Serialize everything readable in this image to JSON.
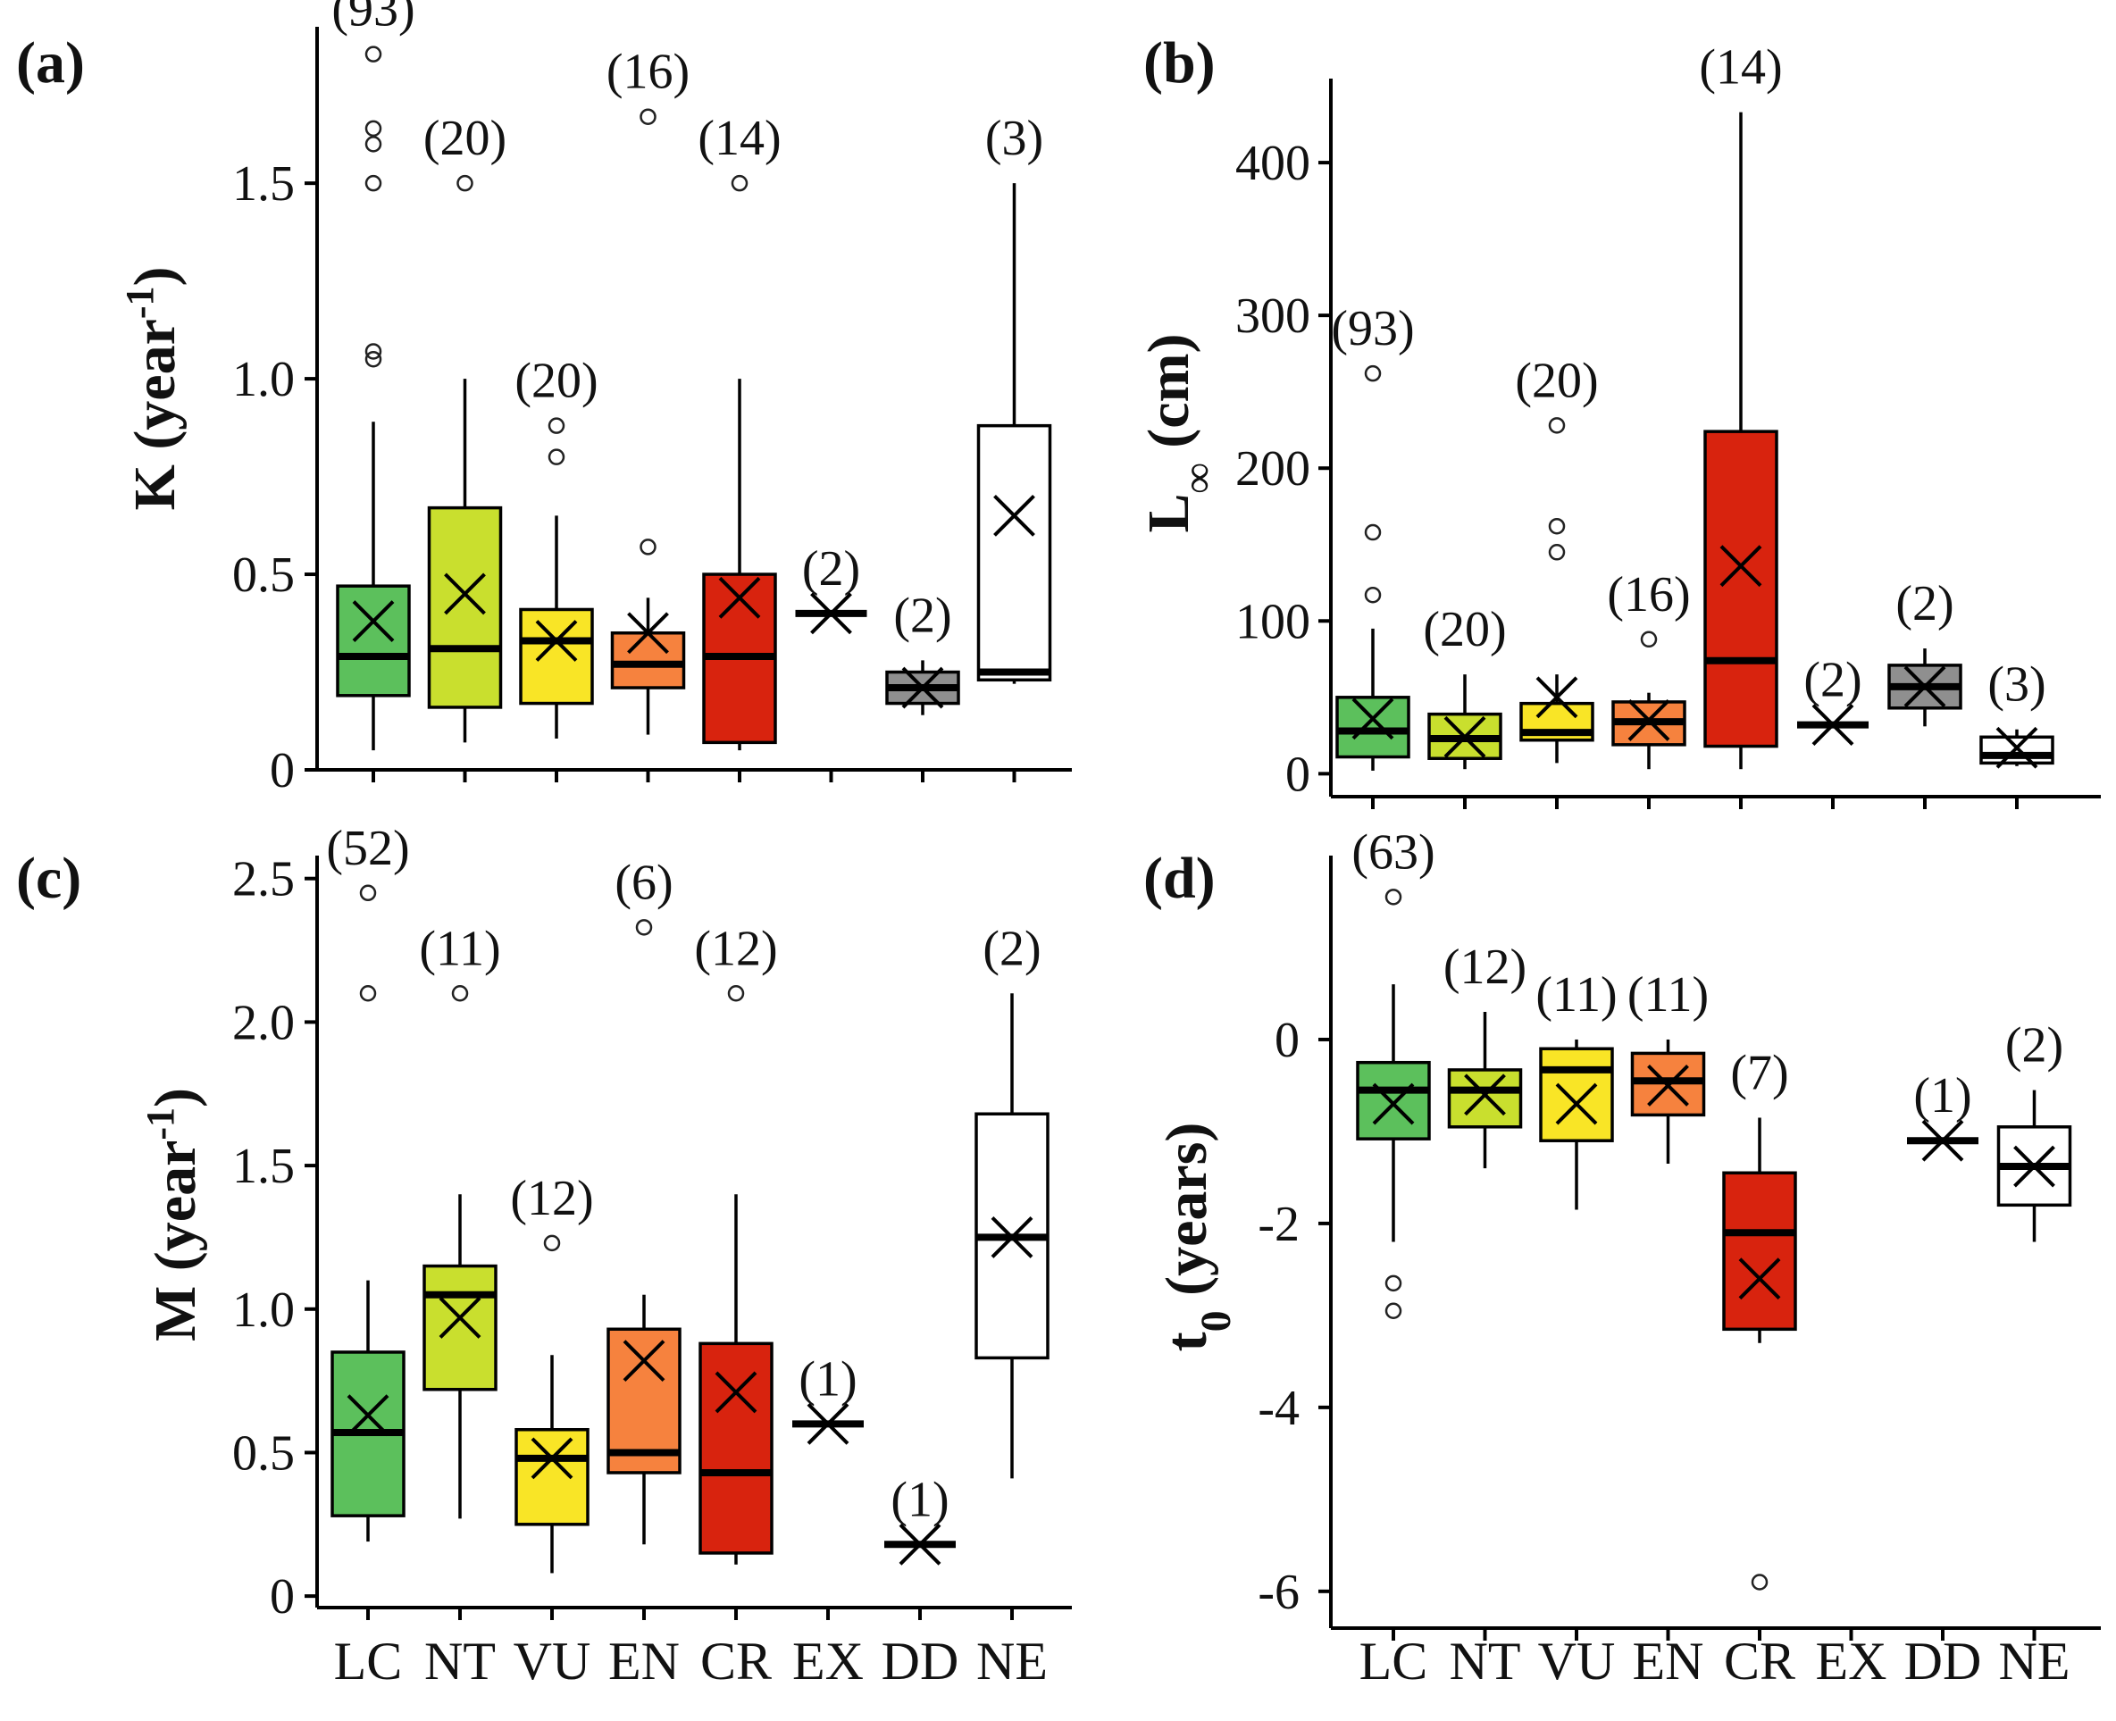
{
  "figure": {
    "categories": [
      "LC",
      "NT",
      "VU",
      "EN",
      "CR",
      "EX",
      "DD",
      "NE"
    ],
    "colors": {
      "LC": "#5cc05c",
      "NT": "#c9df2e",
      "VU": "#f9e526",
      "EN": "#f6823e",
      "CR": "#d8230e",
      "EX": "#ffffff",
      "DD": "#8f8f8f",
      "NE": "#ffffff"
    }
  },
  "chart_data": [
    {
      "type": "box",
      "panel": "(a)",
      "ylabel": "K (year",
      "ylabel_sup": "-1",
      "ylabel_close": ")",
      "ylim": [
        0,
        1.9
      ],
      "yticks": [
        0,
        0.5,
        1.0,
        1.5
      ],
      "ytick_labels": [
        "0",
        "0.5",
        "1.0",
        "1.5"
      ],
      "x_tick_labels_shown": false,
      "boxes": [
        {
          "cat": "LC",
          "n": "(93)",
          "q1": 0.19,
          "median": 0.29,
          "q3": 0.47,
          "whisker_low": 0.05,
          "whisker_high": 0.89,
          "mean": 0.38,
          "outliers": [
            1.05,
            1.07,
            1.5,
            1.6,
            1.64,
            1.83
          ]
        },
        {
          "cat": "NT",
          "n": "(20)",
          "q1": 0.16,
          "median": 0.31,
          "q3": 0.67,
          "whisker_low": 0.07,
          "whisker_high": 1.0,
          "mean": 0.45,
          "outliers": [
            1.5
          ]
        },
        {
          "cat": "VU",
          "n": "(20)",
          "q1": 0.17,
          "median": 0.33,
          "q3": 0.41,
          "whisker_low": 0.08,
          "whisker_high": 0.65,
          "mean": 0.33,
          "outliers": [
            0.8,
            0.88
          ]
        },
        {
          "cat": "EN",
          "n": "(16)",
          "q1": 0.21,
          "median": 0.27,
          "q3": 0.35,
          "whisker_low": 0.09,
          "whisker_high": 0.44,
          "mean": 0.35,
          "outliers": [
            0.57,
            1.67
          ]
        },
        {
          "cat": "CR",
          "n": "(14)",
          "q1": 0.07,
          "median": 0.29,
          "q3": 0.5,
          "whisker_low": 0.05,
          "whisker_high": 1.0,
          "mean": 0.44,
          "outliers": [
            1.5
          ]
        },
        {
          "cat": "EX",
          "n": "(2)",
          "q1": 0.4,
          "median": 0.4,
          "q3": 0.4,
          "whisker_low": 0.4,
          "whisker_high": 0.4,
          "mean": 0.4,
          "outliers": []
        },
        {
          "cat": "DD",
          "n": "(2)",
          "q1": 0.17,
          "median": 0.21,
          "q3": 0.25,
          "whisker_low": 0.14,
          "whisker_high": 0.28,
          "mean": 0.21,
          "outliers": []
        },
        {
          "cat": "NE",
          "n": "(3)",
          "q1": 0.23,
          "median": 0.25,
          "q3": 0.88,
          "whisker_low": 0.22,
          "whisker_high": 1.5,
          "mean": 0.65,
          "outliers": []
        }
      ]
    },
    {
      "type": "box",
      "panel": "(b)",
      "ylabel": "L",
      "ylabel_sub": "∞",
      "ylabel_close": " (cm)",
      "ylim": [
        -15,
        455
      ],
      "yticks": [
        0,
        100,
        200,
        300,
        400
      ],
      "ytick_labels": [
        "0",
        "100",
        "200",
        "300",
        "400"
      ],
      "x_tick_labels_shown": false,
      "boxes": [
        {
          "cat": "LC",
          "n": "(93)",
          "q1": 11,
          "median": 28,
          "q3": 50,
          "whisker_low": 2,
          "whisker_high": 95,
          "mean": 36,
          "outliers": [
            117,
            158,
            262
          ]
        },
        {
          "cat": "NT",
          "n": "(20)",
          "q1": 10,
          "median": 23,
          "q3": 39,
          "whisker_low": 3,
          "whisker_high": 65,
          "mean": 24,
          "outliers": []
        },
        {
          "cat": "VU",
          "n": "(20)",
          "q1": 22,
          "median": 27,
          "q3": 46,
          "whisker_low": 7,
          "whisker_high": 65,
          "mean": 50,
          "outliers": [
            145,
            162,
            228
          ]
        },
        {
          "cat": "EN",
          "n": "(16)",
          "q1": 19,
          "median": 34,
          "q3": 47,
          "whisker_low": 3,
          "whisker_high": 53,
          "mean": 35,
          "outliers": [
            88
          ]
        },
        {
          "cat": "CR",
          "n": "(14)",
          "q1": 18,
          "median": 74,
          "q3": 224,
          "whisker_low": 3,
          "whisker_high": 433,
          "mean": 136,
          "outliers": []
        },
        {
          "cat": "EX",
          "n": "(2)",
          "q1": 32,
          "median": 32,
          "q3": 32,
          "whisker_low": 32,
          "whisker_high": 32,
          "mean": 32,
          "outliers": []
        },
        {
          "cat": "DD",
          "n": "(2)",
          "q1": 43,
          "median": 57,
          "q3": 71,
          "whisker_low": 31,
          "whisker_high": 82,
          "mean": 57,
          "outliers": []
        },
        {
          "cat": "NE",
          "n": "(3)",
          "q1": 7,
          "median": 12,
          "q3": 24,
          "whisker_low": 5,
          "whisker_high": 29,
          "mean": 17,
          "outliers": []
        }
      ]
    },
    {
      "type": "box",
      "panel": "(c)",
      "ylabel": "M (year",
      "ylabel_sup": "-1",
      "ylabel_close": ")",
      "ylim": [
        -0.04,
        2.58
      ],
      "yticks": [
        0,
        0.5,
        1.0,
        1.5,
        2.0,
        2.5
      ],
      "ytick_labels": [
        "0",
        "0.5",
        "1.0",
        "1.5",
        "2.0",
        "2.5"
      ],
      "x_tick_labels_shown": true,
      "boxes": [
        {
          "cat": "LC",
          "n": "(52)",
          "q1": 0.28,
          "median": 0.57,
          "q3": 0.85,
          "whisker_low": 0.19,
          "whisker_high": 1.1,
          "mean": 0.63,
          "outliers": [
            2.1,
            2.45
          ]
        },
        {
          "cat": "NT",
          "n": "(11)",
          "q1": 0.72,
          "median": 1.05,
          "q3": 1.15,
          "whisker_low": 0.27,
          "whisker_high": 1.4,
          "mean": 0.97,
          "outliers": [
            2.1
          ]
        },
        {
          "cat": "VU",
          "n": "(12)",
          "q1": 0.25,
          "median": 0.48,
          "q3": 0.58,
          "whisker_low": 0.08,
          "whisker_high": 0.84,
          "mean": 0.48,
          "outliers": [
            1.23
          ]
        },
        {
          "cat": "EN",
          "n": "(6)",
          "q1": 0.43,
          "median": 0.5,
          "q3": 0.93,
          "whisker_low": 0.18,
          "whisker_high": 1.05,
          "mean": 0.82,
          "outliers": [
            2.33
          ]
        },
        {
          "cat": "CR",
          "n": "(12)",
          "q1": 0.15,
          "median": 0.43,
          "q3": 0.88,
          "whisker_low": 0.11,
          "whisker_high": 1.4,
          "mean": 0.71,
          "outliers": [
            2.1
          ]
        },
        {
          "cat": "EX",
          "n": "(1)",
          "q1": 0.6,
          "median": 0.6,
          "q3": 0.6,
          "whisker_low": 0.6,
          "whisker_high": 0.6,
          "mean": 0.6,
          "outliers": []
        },
        {
          "cat": "DD",
          "n": "(1)",
          "q1": 0.18,
          "median": 0.18,
          "q3": 0.18,
          "whisker_low": 0.18,
          "whisker_high": 0.18,
          "mean": 0.18,
          "outliers": []
        },
        {
          "cat": "NE",
          "n": "(2)",
          "q1": 0.83,
          "median": 1.25,
          "q3": 1.68,
          "whisker_low": 0.41,
          "whisker_high": 2.1,
          "mean": 1.25,
          "outliers": []
        }
      ]
    },
    {
      "type": "box",
      "panel": "(d)",
      "ylabel": "t",
      "ylabel_sub": "0",
      "ylabel_close": " (years)",
      "ylim": [
        -6.4,
        2.0
      ],
      "yticks": [
        -6,
        -4,
        -2,
        0
      ],
      "ytick_labels": [
        "-6",
        "-4",
        "-2",
        "0"
      ],
      "x_tick_labels_shown": true,
      "boxes": [
        {
          "cat": "LC",
          "n": "(63)",
          "q1": -1.08,
          "median": -0.55,
          "q3": -0.25,
          "whisker_low": -2.2,
          "whisker_high": 0.6,
          "mean": -0.7,
          "outliers": [
            -2.65,
            -2.95,
            1.55
          ]
        },
        {
          "cat": "NT",
          "n": "(12)",
          "q1": -0.95,
          "median": -0.55,
          "q3": -0.33,
          "whisker_low": -1.4,
          "whisker_high": 0.3,
          "mean": -0.6,
          "outliers": []
        },
        {
          "cat": "VU",
          "n": "(11)",
          "q1": -1.1,
          "median": -0.33,
          "q3": -0.1,
          "whisker_low": -1.85,
          "whisker_high": 0.0,
          "mean": -0.7,
          "outliers": []
        },
        {
          "cat": "EN",
          "n": "(11)",
          "q1": -0.82,
          "median": -0.45,
          "q3": -0.15,
          "whisker_low": -1.35,
          "whisker_high": 0.0,
          "mean": -0.5,
          "outliers": []
        },
        {
          "cat": "CR",
          "n": "(7)",
          "q1": -3.15,
          "median": -2.1,
          "q3": -1.45,
          "whisker_low": -3.3,
          "whisker_high": -0.85,
          "mean": -2.6,
          "outliers": [
            -5.9
          ]
        },
        {
          "cat": "EX",
          "n": "",
          "q1": null,
          "median": null,
          "q3": null,
          "whisker_low": null,
          "whisker_high": null,
          "mean": null,
          "outliers": []
        },
        {
          "cat": "DD",
          "n": "(1)",
          "q1": -1.1,
          "median": -1.1,
          "q3": -1.1,
          "whisker_low": -1.1,
          "whisker_high": -1.1,
          "mean": -1.1,
          "outliers": []
        },
        {
          "cat": "NE",
          "n": "(2)",
          "q1": -1.8,
          "median": -1.38,
          "q3": -0.95,
          "whisker_low": -2.2,
          "whisker_high": -0.55,
          "mean": -1.38,
          "outliers": []
        }
      ]
    }
  ]
}
